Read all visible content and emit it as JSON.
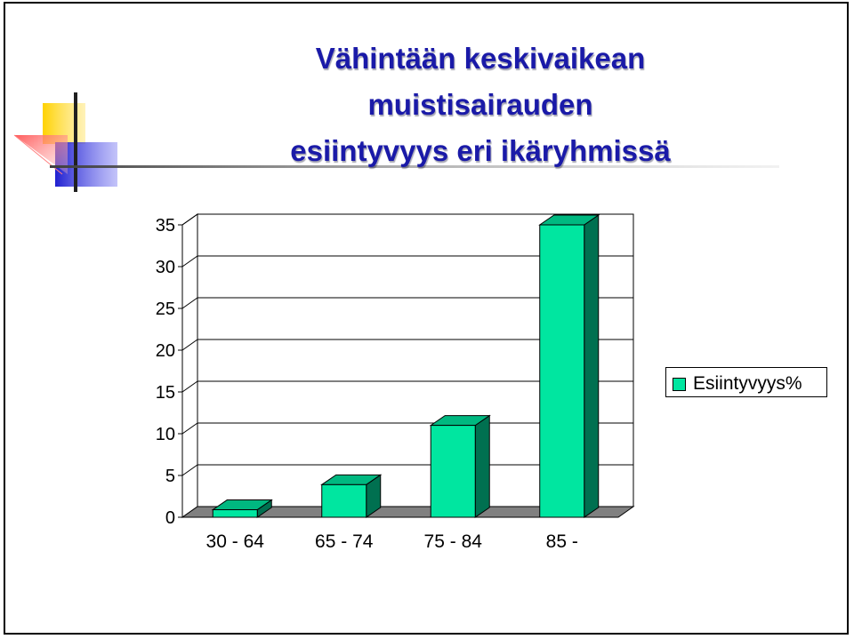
{
  "slide": {
    "title_lines": [
      "Vähintään keskivaikean",
      "muistisairauden",
      "esiintyvyys eri ikäryhmissä"
    ]
  },
  "colors": {
    "title": "#1a1aa8",
    "bar_front": "#00e6a0",
    "bar_side": "#007050",
    "bar_top": "#00b880",
    "floor": "#808080"
  },
  "chart_data": {
    "type": "bar",
    "categories": [
      "30 - 64",
      "65 - 74",
      "75 - 84",
      "85 -"
    ],
    "series": [
      {
        "name": "Esiintyvyys%",
        "values": [
          0.9,
          3.9,
          11.0,
          35.0
        ]
      }
    ],
    "yticks": [
      "0",
      "5",
      "10",
      "15",
      "20",
      "25",
      "30",
      "35"
    ],
    "ylim": [
      0,
      35
    ],
    "grid": true,
    "legend": "right",
    "style": "3d-column"
  }
}
